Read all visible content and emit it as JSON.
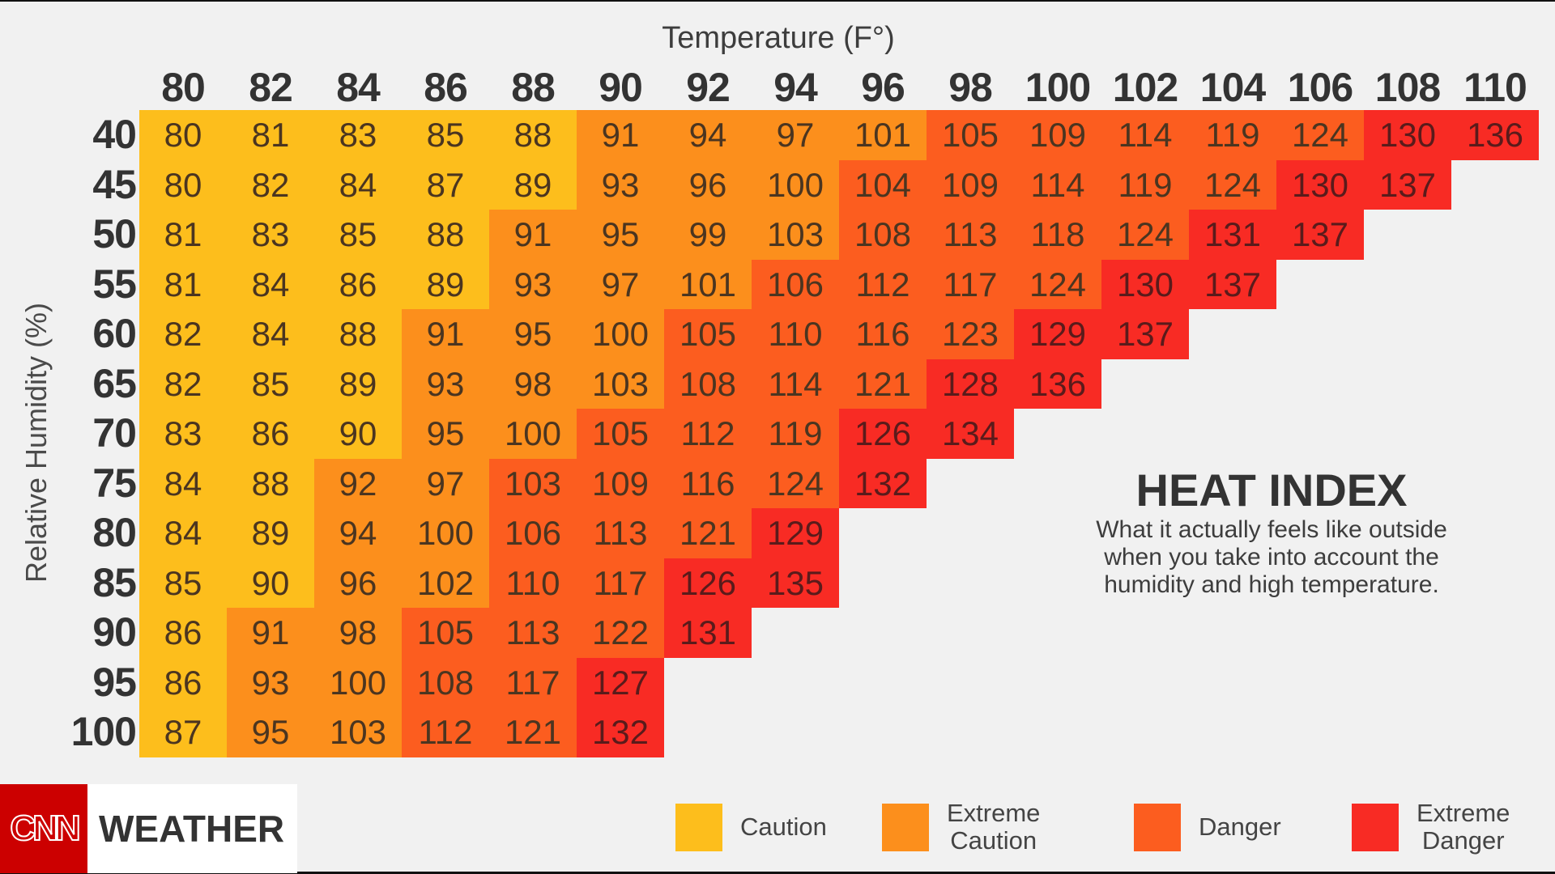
{
  "chart_data": {
    "type": "heatmap",
    "title": "HEAT INDEX",
    "subtitle": "What it actually feels like outside when you take into account the humidity and high temperature.",
    "xlabel": "Temperature (F°)",
    "ylabel": "Relative Humidity (%)",
    "x": [
      80,
      82,
      84,
      86,
      88,
      90,
      92,
      94,
      96,
      98,
      100,
      102,
      104,
      106,
      108,
      110
    ],
    "y": [
      40,
      45,
      50,
      55,
      60,
      65,
      70,
      75,
      80,
      85,
      90,
      95,
      100
    ],
    "values": [
      [
        80,
        81,
        83,
        85,
        88,
        91,
        94,
        97,
        101,
        105,
        109,
        114,
        119,
        124,
        130,
        136
      ],
      [
        80,
        82,
        84,
        87,
        89,
        93,
        96,
        100,
        104,
        109,
        114,
        119,
        124,
        130,
        137,
        null
      ],
      [
        81,
        83,
        85,
        88,
        91,
        95,
        99,
        103,
        108,
        113,
        118,
        124,
        131,
        137,
        null,
        null
      ],
      [
        81,
        84,
        86,
        89,
        93,
        97,
        101,
        106,
        112,
        117,
        124,
        130,
        137,
        null,
        null,
        null
      ],
      [
        82,
        84,
        88,
        91,
        95,
        100,
        105,
        110,
        116,
        123,
        129,
        137,
        null,
        null,
        null,
        null
      ],
      [
        82,
        85,
        89,
        93,
        98,
        103,
        108,
        114,
        121,
        128,
        136,
        null,
        null,
        null,
        null,
        null
      ],
      [
        83,
        86,
        90,
        95,
        100,
        105,
        112,
        119,
        126,
        134,
        null,
        null,
        null,
        null,
        null,
        null
      ],
      [
        84,
        88,
        92,
        97,
        103,
        109,
        116,
        124,
        132,
        null,
        null,
        null,
        null,
        null,
        null,
        null
      ],
      [
        84,
        89,
        94,
        100,
        106,
        113,
        121,
        129,
        null,
        null,
        null,
        null,
        null,
        null,
        null,
        null
      ],
      [
        85,
        90,
        96,
        102,
        110,
        117,
        126,
        135,
        null,
        null,
        null,
        null,
        null,
        null,
        null,
        null
      ],
      [
        86,
        91,
        98,
        105,
        113,
        122,
        131,
        null,
        null,
        null,
        null,
        null,
        null,
        null,
        null,
        null
      ],
      [
        86,
        93,
        100,
        108,
        117,
        127,
        null,
        null,
        null,
        null,
        null,
        null,
        null,
        null,
        null,
        null
      ],
      [
        87,
        95,
        103,
        112,
        121,
        132,
        null,
        null,
        null,
        null,
        null,
        null,
        null,
        null,
        null,
        null
      ]
    ],
    "categories_matrix": [
      [
        1,
        1,
        1,
        1,
        1,
        2,
        2,
        2,
        2,
        3,
        3,
        3,
        3,
        3,
        4,
        4
      ],
      [
        1,
        1,
        1,
        1,
        1,
        2,
        2,
        2,
        3,
        3,
        3,
        3,
        3,
        4,
        4,
        0
      ],
      [
        1,
        1,
        1,
        1,
        2,
        2,
        2,
        2,
        3,
        3,
        3,
        3,
        4,
        4,
        0,
        0
      ],
      [
        1,
        1,
        1,
        1,
        2,
        2,
        2,
        3,
        3,
        3,
        3,
        4,
        4,
        0,
        0,
        0
      ],
      [
        1,
        1,
        1,
        2,
        2,
        2,
        3,
        3,
        3,
        3,
        4,
        4,
        0,
        0,
        0,
        0
      ],
      [
        1,
        1,
        1,
        2,
        2,
        2,
        3,
        3,
        3,
        4,
        4,
        0,
        0,
        0,
        0,
        0
      ],
      [
        1,
        1,
        1,
        2,
        2,
        3,
        3,
        3,
        4,
        4,
        0,
        0,
        0,
        0,
        0,
        0
      ],
      [
        1,
        1,
        2,
        2,
        3,
        3,
        3,
        3,
        4,
        0,
        0,
        0,
        0,
        0,
        0,
        0
      ],
      [
        1,
        1,
        2,
        2,
        3,
        3,
        3,
        4,
        0,
        0,
        0,
        0,
        0,
        0,
        0,
        0
      ],
      [
        1,
        1,
        2,
        2,
        3,
        3,
        4,
        4,
        0,
        0,
        0,
        0,
        0,
        0,
        0,
        0
      ],
      [
        1,
        2,
        2,
        3,
        3,
        3,
        4,
        0,
        0,
        0,
        0,
        0,
        0,
        0,
        0,
        0
      ],
      [
        1,
        2,
        2,
        3,
        3,
        4,
        0,
        0,
        0,
        0,
        0,
        0,
        0,
        0,
        0,
        0
      ],
      [
        1,
        2,
        2,
        3,
        3,
        4,
        0,
        0,
        0,
        0,
        0,
        0,
        0,
        0,
        0,
        0
      ]
    ],
    "legend": [
      {
        "label": "Caution",
        "color": "#fdbe1c"
      },
      {
        "label": "Extreme Caution",
        "color": "#fc8f1c"
      },
      {
        "label": "Danger",
        "color": "#fc5d1f"
      },
      {
        "label": "Extreme Danger",
        "color": "#f82b24"
      }
    ],
    "legend_position": "bottom-right",
    "grid": false
  },
  "header": {
    "x_title": "Temperature (F°)",
    "y_title": "Relative Humidity (%)"
  },
  "info": {
    "title": "HEAT INDEX",
    "desc_lines": [
      "What it actually feels like outside",
      "when you take into account the",
      "humidity and high temperature."
    ]
  },
  "brand": {
    "logo": "CNN",
    "section": "WEATHER",
    "logo_color": "#cc0000"
  },
  "legend": {
    "items": [
      {
        "line1": "Caution",
        "line2": "",
        "color": "#fdbe1c"
      },
      {
        "line1": "Extreme",
        "line2": "Caution",
        "color": "#fc8f1c"
      },
      {
        "line1": "Danger",
        "line2": "",
        "color": "#fc5d1f"
      },
      {
        "line1": "Extreme",
        "line2": "Danger",
        "color": "#f82b24"
      }
    ]
  }
}
